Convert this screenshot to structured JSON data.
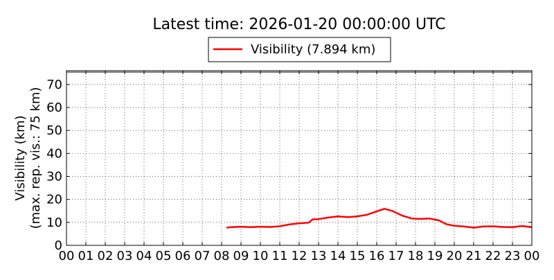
{
  "chart_data": {
    "type": "line",
    "title": "Latest time: 2026-01-20 00:00:00 UTC",
    "ylabel_line1": "Visibility (km)",
    "ylabel_line2": "(max. rep. vis.: 75 km)",
    "xlabel": "",
    "xlim": [
      0,
      24
    ],
    "ylim": [
      0,
      76
    ],
    "x_ticks": [
      "00",
      "01",
      "02",
      "03",
      "04",
      "05",
      "06",
      "07",
      "08",
      "09",
      "10",
      "11",
      "12",
      "13",
      "14",
      "15",
      "16",
      "17",
      "18",
      "19",
      "20",
      "21",
      "22",
      "23",
      "00"
    ],
    "y_ticks": [
      0,
      10,
      20,
      30,
      40,
      50,
      60,
      70
    ],
    "grid": true,
    "legend": {
      "position": "top-center",
      "label": "Visibility (7.894 km)"
    },
    "series": [
      {
        "name": "Visibility (7.894 km)",
        "color": "#ff0000",
        "x": [
          8.25,
          8.5,
          9.0,
          9.5,
          10.0,
          10.5,
          11.0,
          11.5,
          12.0,
          12.5,
          12.7,
          13.0,
          13.5,
          14.0,
          14.5,
          15.0,
          15.5,
          16.0,
          16.4,
          16.8,
          17.3,
          17.8,
          18.2,
          18.7,
          19.2,
          19.6,
          20.0,
          20.5,
          21.0,
          21.5,
          22.0,
          22.5,
          23.0,
          23.5,
          24.0
        ],
        "y": [
          7.7,
          7.9,
          8.1,
          7.9,
          8.1,
          8.0,
          8.3,
          9.1,
          9.6,
          9.9,
          11.3,
          11.4,
          12.1,
          12.6,
          12.3,
          12.6,
          13.3,
          14.8,
          15.9,
          15.0,
          13.0,
          11.7,
          11.5,
          11.7,
          10.9,
          9.2,
          8.5,
          8.2,
          7.7,
          8.2,
          8.3,
          8.0,
          7.9,
          8.4,
          7.9
        ]
      }
    ]
  }
}
